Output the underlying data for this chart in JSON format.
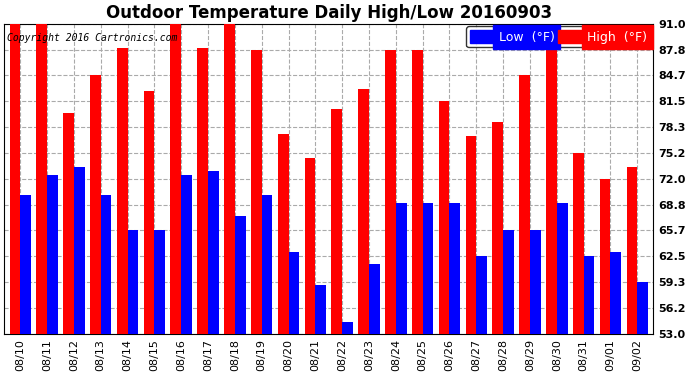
{
  "title": "Outdoor Temperature Daily High/Low 20160903",
  "copyright": "Copyright 2016 Cartronics.com",
  "legend_low": "Low  (°F)",
  "legend_high": "High  (°F)",
  "dates": [
    "08/10",
    "08/11",
    "08/12",
    "08/13",
    "08/14",
    "08/15",
    "08/16",
    "08/17",
    "08/18",
    "08/19",
    "08/20",
    "08/21",
    "08/22",
    "08/23",
    "08/24",
    "08/25",
    "08/26",
    "08/27",
    "08/28",
    "08/29",
    "08/30",
    "08/31",
    "09/01",
    "09/02"
  ],
  "highs": [
    91.0,
    91.0,
    80.0,
    84.7,
    88.0,
    82.8,
    91.0,
    88.0,
    91.0,
    87.8,
    77.5,
    74.5,
    80.5,
    83.0,
    87.8,
    87.8,
    81.5,
    77.2,
    79.0,
    84.7,
    87.8,
    75.2,
    72.0,
    73.5
  ],
  "lows": [
    70.0,
    72.5,
    73.5,
    70.0,
    65.7,
    65.7,
    72.5,
    73.0,
    67.5,
    70.0,
    63.0,
    59.0,
    54.5,
    61.5,
    69.0,
    69.0,
    69.0,
    62.5,
    65.7,
    65.7,
    69.0,
    62.5,
    63.0,
    59.3
  ],
  "ymin": 53.0,
  "ymax": 91.0,
  "yticks": [
    53.0,
    56.2,
    59.3,
    62.5,
    65.7,
    68.8,
    72.0,
    75.2,
    78.3,
    81.5,
    84.7,
    87.8,
    91.0
  ],
  "bar_width": 0.4,
  "high_color": "#ff0000",
  "low_color": "#0000ff",
  "bg_color": "#ffffff",
  "grid_color": "#aaaaaa",
  "title_fontsize": 12,
  "tick_fontsize": 8,
  "legend_fontsize": 9
}
